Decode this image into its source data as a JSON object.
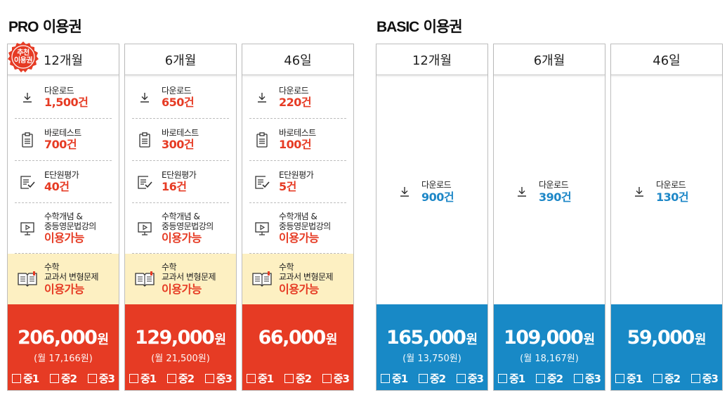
{
  "sections": {
    "pro": {
      "title_en": "PRO",
      "title_ko": " 이용권"
    },
    "basic": {
      "title_en": "BASIC",
      "title_ko": " 이용권"
    }
  },
  "badge": {
    "line1": "추천",
    "line2": "이용권"
  },
  "colors": {
    "pro": "#e63b24",
    "basic": "#1889c6",
    "highlight": "#fdf0c2"
  },
  "pro_cards": [
    {
      "period": "12개월",
      "download": {
        "label": "다운로드",
        "value": "1,500건"
      },
      "barotest": {
        "label": "바로테스트",
        "value": "700건"
      },
      "eval": {
        "label": "E단원평가",
        "value": "40건"
      },
      "lecture": {
        "label1": "수학개념 &",
        "label2": "중등영문법강의",
        "value": "이용가능"
      },
      "textbook": {
        "label1": "수학",
        "label2": "교과서 변형문제",
        "value": "이용가능"
      },
      "price": "206,000",
      "unit": "원",
      "monthly": "(월 17,166원)",
      "grades": [
        "중1",
        "중2",
        "중3"
      ]
    },
    {
      "period": "6개월",
      "download": {
        "label": "다운로드",
        "value": "650건"
      },
      "barotest": {
        "label": "바로테스트",
        "value": "300건"
      },
      "eval": {
        "label": "E단원평가",
        "value": "16건"
      },
      "lecture": {
        "label1": "수학개념 &",
        "label2": "중등영문법강의",
        "value": "이용가능"
      },
      "textbook": {
        "label1": "수학",
        "label2": "교과서 변형문제",
        "value": "이용가능"
      },
      "price": "129,000",
      "unit": "원",
      "monthly": "(월 21,500원)",
      "grades": [
        "중1",
        "중2",
        "중3"
      ]
    },
    {
      "period": "46일",
      "download": {
        "label": "다운로드",
        "value": "220건"
      },
      "barotest": {
        "label": "바로테스트",
        "value": "100건"
      },
      "eval": {
        "label": "E단원평가",
        "value": "5건"
      },
      "lecture": {
        "label1": "수학개념 &",
        "label2": "중등영문법강의",
        "value": "이용가능"
      },
      "textbook": {
        "label1": "수학",
        "label2": "교과서 변형문제",
        "value": "이용가능"
      },
      "price": "66,000",
      "unit": "원",
      "monthly": "",
      "grades": [
        "중1",
        "중2",
        "중3"
      ]
    }
  ],
  "basic_cards": [
    {
      "period": "12개월",
      "download": {
        "label": "다운로드",
        "value": "900건"
      },
      "price": "165,000",
      "unit": "원",
      "monthly": "(월 13,750원)",
      "grades": [
        "중1",
        "중2",
        "중3"
      ]
    },
    {
      "period": "6개월",
      "download": {
        "label": "다운로드",
        "value": "390건"
      },
      "price": "109,000",
      "unit": "원",
      "monthly": "(월 18,167원)",
      "grades": [
        "중1",
        "중2",
        "중3"
      ]
    },
    {
      "period": "46일",
      "download": {
        "label": "다운로드",
        "value": "130건"
      },
      "price": "59,000",
      "unit": "원",
      "monthly": "",
      "grades": [
        "중1",
        "중2",
        "중3"
      ]
    }
  ]
}
